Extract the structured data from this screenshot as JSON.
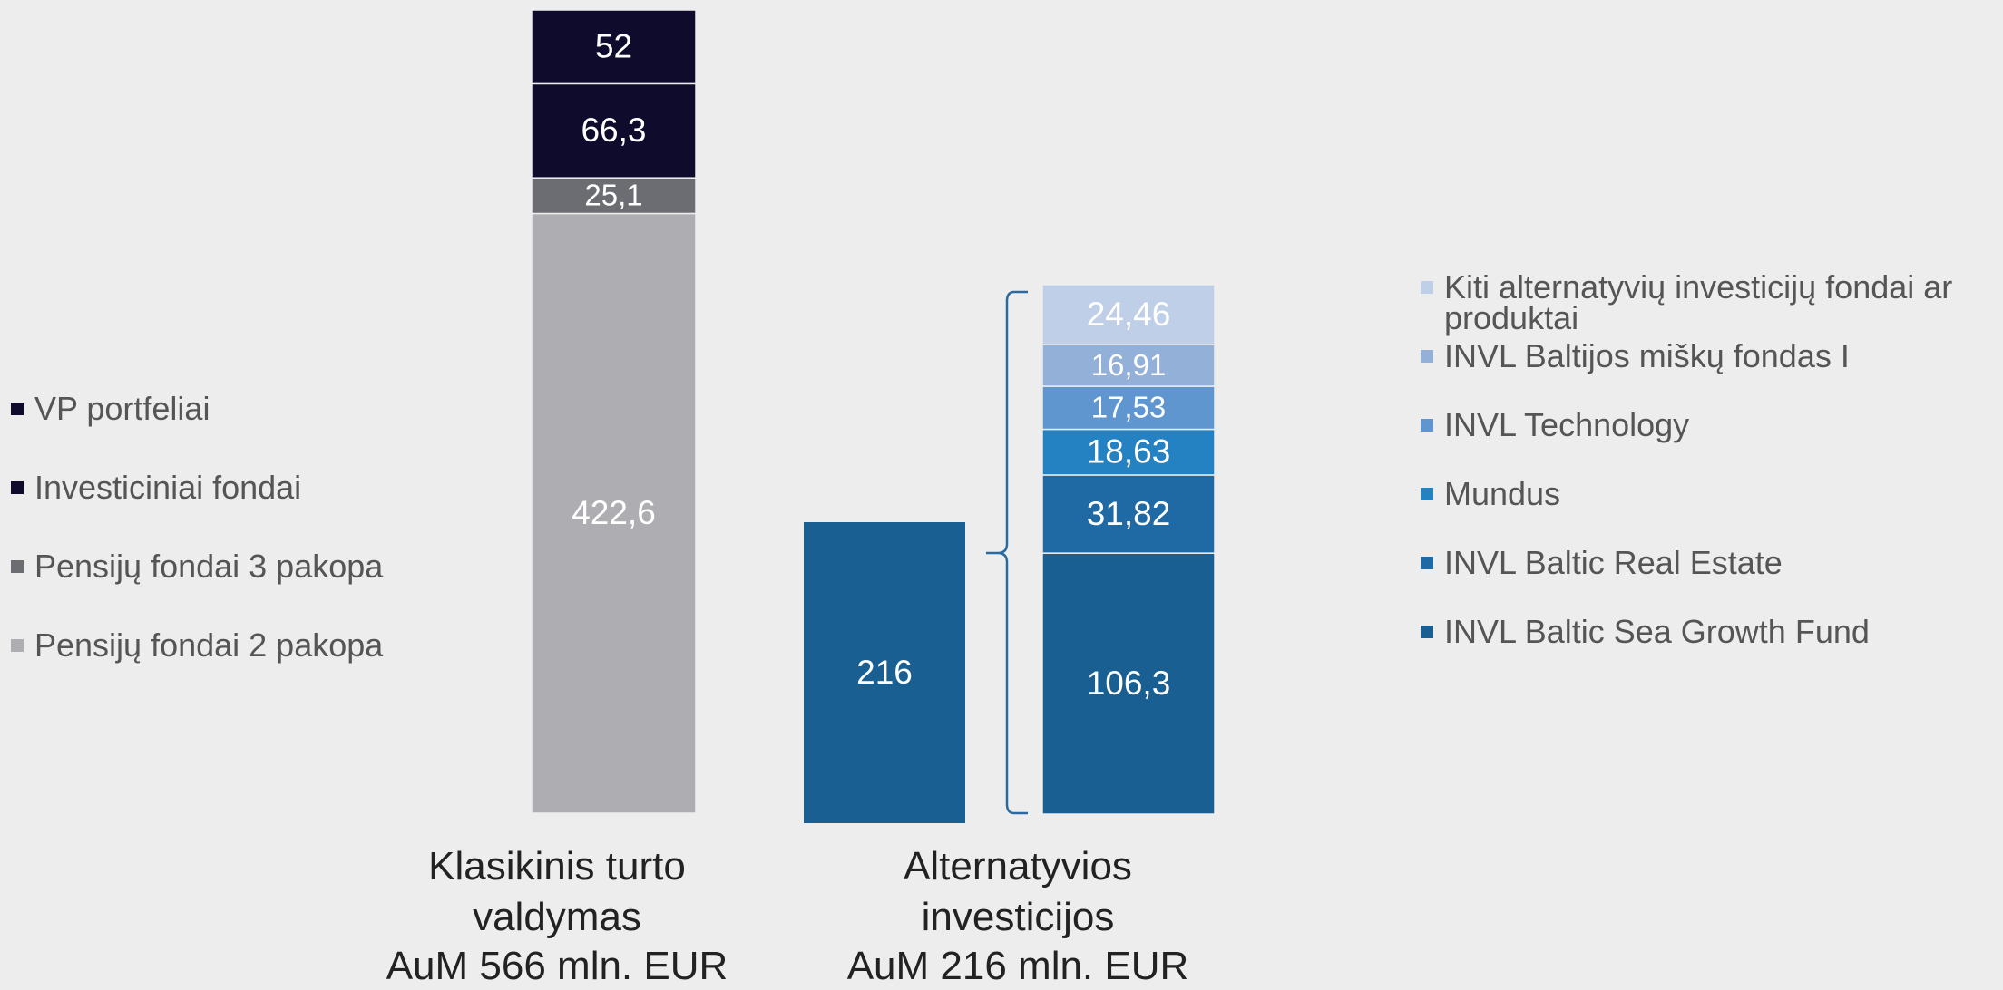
{
  "chart_data": [
    {
      "type": "stacked_bar",
      "categories": [
        "Klasikinis turto valdymas"
      ],
      "annotation": "AuM 566 mln. EUR",
      "series": [
        {
          "name": "VP portfeliai",
          "color": "#0e0b2c",
          "values": [
            52
          ]
        },
        {
          "name": "Investiciniai fondai",
          "color": "#0e0b2c",
          "values": [
            66.3
          ],
          "value_labels": [
            "66,3"
          ]
        },
        {
          "name": "Pensijų fondai 3 pakopa",
          "color": "#6c6c73",
          "values": [
            25.1
          ],
          "value_labels": [
            "25,1"
          ]
        },
        {
          "name": "Pensijų fondai 2 pakopa",
          "color": "#adadb2",
          "values": [
            422.6
          ],
          "value_labels": [
            "422,6"
          ]
        }
      ]
    },
    {
      "type": "stacked_bar",
      "categories": [
        "Alternatyvios investicijos"
      ],
      "annotation": "AuM 216 mln. EUR",
      "total": {
        "color": "#1a5f91",
        "values": [
          216
        ]
      },
      "series": [
        {
          "name": "Kiti alternatyvių investicijų fondai ar produktai",
          "color": "#c0cfe8",
          "values": [
            24.46
          ],
          "value_labels": [
            "24,46"
          ]
        },
        {
          "name": "INVL Baltijos miškų fondas I",
          "color": "#93b0d9",
          "values": [
            16.91
          ],
          "value_labels": [
            "16,91"
          ]
        },
        {
          "name": "INVL Technology",
          "color": "#5f96cf",
          "values": [
            17.53
          ],
          "value_labels": [
            "17,53"
          ]
        },
        {
          "name": "Mundus",
          "color": "#2582c2",
          "values": [
            18.63
          ],
          "value_labels": [
            "18,63"
          ]
        },
        {
          "name": "INVL Baltic Real Estate",
          "color": "#1f6aa5",
          "values": [
            31.82
          ],
          "value_labels": [
            "31,82"
          ]
        },
        {
          "name": "INVL Baltic Sea Growth Fund",
          "color": "#1a5f91",
          "values": [
            106.3
          ],
          "value_labels": [
            "106,3"
          ]
        }
      ]
    }
  ]
}
